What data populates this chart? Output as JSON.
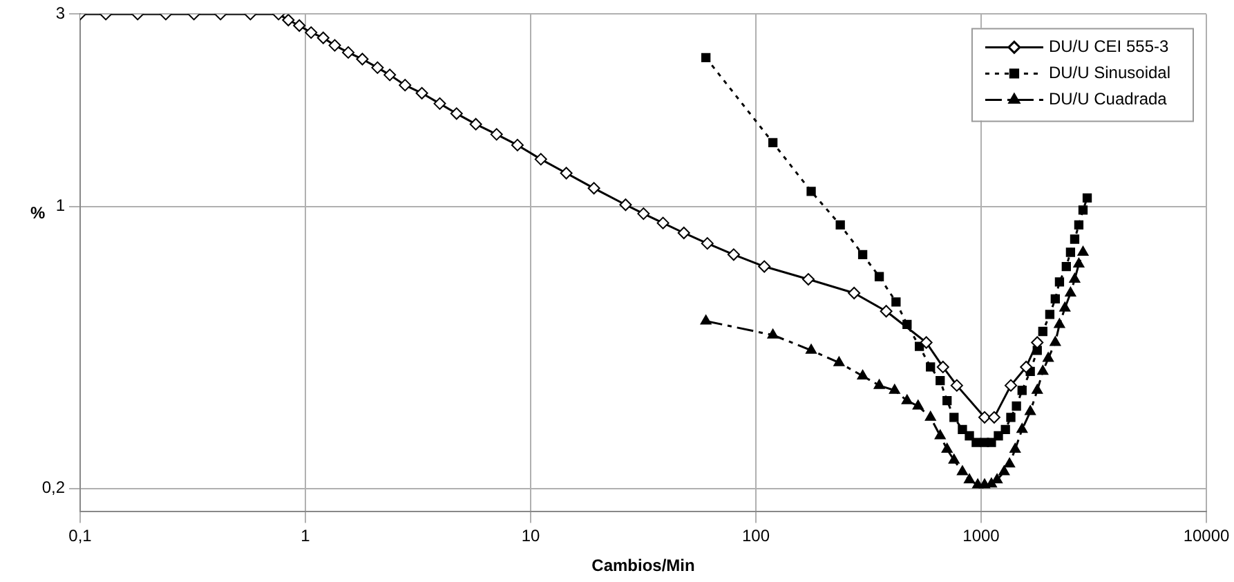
{
  "chart_data": {
    "type": "line",
    "xlabel": "Cambios/Min",
    "ylabel": "%",
    "log": "xy",
    "grid": true,
    "legend": "top right",
    "xlim": [
      0.1,
      10000
    ],
    "xticks": [
      {
        "value": 0.1,
        "label": "0,1"
      },
      1,
      10,
      100,
      1000,
      10000
    ],
    "ylim": [
      0.175,
      3
    ],
    "yticks": [
      {
        "value": 0.2,
        "label": "0,2"
      },
      1,
      3
    ],
    "series": [
      {
        "name": "DU/U CEI 555-3",
        "color": "#000000",
        "marker": "diamond",
        "line_style": "solid",
        "x": [
          0.1,
          0.13,
          0.18,
          0.24,
          0.32,
          0.42,
          0.57,
          0.76,
          0.84,
          0.94,
          1.06,
          1.2,
          1.35,
          1.55,
          1.79,
          2.09,
          2.37,
          2.77,
          3.29,
          3.95,
          4.69,
          5.71,
          7.06,
          8.74,
          11.1,
          14.4,
          19.1,
          26.4,
          31.7,
          38.7,
          47.9,
          60.9,
          79.7,
          109,
          171,
          273,
          379,
          571,
          677,
          780,
          1036,
          1143,
          1355,
          1585,
          1775
        ],
        "values": [
          3,
          3,
          3,
          3,
          3,
          3,
          3,
          3,
          2.9,
          2.81,
          2.7,
          2.62,
          2.51,
          2.41,
          2.32,
          2.21,
          2.12,
          2.0,
          1.91,
          1.8,
          1.7,
          1.6,
          1.51,
          1.42,
          1.31,
          1.21,
          1.11,
          1.01,
          0.96,
          0.91,
          0.86,
          0.81,
          0.76,
          0.71,
          0.66,
          0.61,
          0.55,
          0.46,
          0.4,
          0.36,
          0.3,
          0.3,
          0.36,
          0.4,
          0.46
        ]
      },
      {
        "name": "DU/U Sinusoidal",
        "color": "#000000",
        "marker": "square",
        "line_style": "dotted",
        "x": [
          60,
          119,
          176,
          237,
          298,
          353,
          419,
          469,
          532,
          596,
          658,
          706,
          758,
          826,
          887,
          951,
          1036,
          1111,
          1193,
          1282,
          1355,
          1435,
          1520,
          1653,
          1775,
          1879,
          2018,
          2134,
          2228,
          2389,
          2494,
          2603,
          2715,
          2834,
          2958
        ],
        "values": [
          2.34,
          1.44,
          1.09,
          0.9,
          0.76,
          0.67,
          0.58,
          0.51,
          0.45,
          0.4,
          0.37,
          0.33,
          0.3,
          0.28,
          0.27,
          0.26,
          0.26,
          0.26,
          0.27,
          0.28,
          0.3,
          0.32,
          0.35,
          0.39,
          0.44,
          0.49,
          0.54,
          0.59,
          0.65,
          0.71,
          0.77,
          0.83,
          0.9,
          0.98,
          1.05
        ]
      },
      {
        "name": "DU/U Cuadrada",
        "color": "#000000",
        "marker": "triangle",
        "line_style": "dashed",
        "x": [
          60,
          119,
          176,
          234,
          298,
          353,
          413,
          469,
          525,
          596,
          658,
          706,
          758,
          826,
          887,
          966,
          1036,
          1111,
          1177,
          1265,
          1337,
          1416,
          1520,
          1653,
          1775,
          1879,
          1986,
          2134,
          2228,
          2355,
          2494,
          2603,
          2715,
          2834
        ],
        "values": [
          0.52,
          0.48,
          0.44,
          0.41,
          0.38,
          0.36,
          0.35,
          0.33,
          0.32,
          0.3,
          0.27,
          0.25,
          0.235,
          0.22,
          0.21,
          0.204,
          0.204,
          0.205,
          0.21,
          0.22,
          0.23,
          0.25,
          0.28,
          0.31,
          0.35,
          0.39,
          0.42,
          0.46,
          0.51,
          0.56,
          0.61,
          0.66,
          0.72,
          0.77
        ]
      }
    ]
  }
}
